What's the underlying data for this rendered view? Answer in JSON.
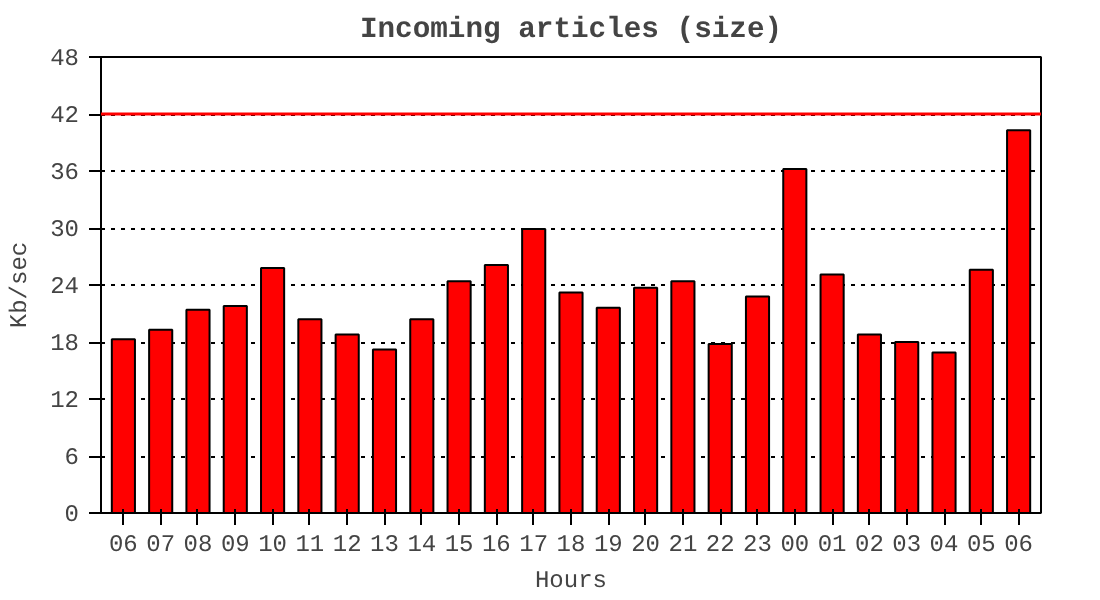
{
  "chart_data": {
    "type": "bar",
    "title": "Incoming articles (size)",
    "ylabel": "Kb/sec",
    "xlabel": "Hours",
    "categories": [
      "06",
      "07",
      "08",
      "09",
      "10",
      "11",
      "12",
      "13",
      "14",
      "15",
      "16",
      "17",
      "18",
      "19",
      "20",
      "21",
      "22",
      "23",
      "00",
      "01",
      "02",
      "03",
      "04",
      "05",
      "06"
    ],
    "series": [
      {
        "color": "#ff0000",
        "values": [
          18.3,
          19.3,
          21.4,
          21.8,
          25.8,
          20.4,
          18.8,
          17.2,
          20.4,
          24.4,
          26.1,
          29.9,
          23.2,
          21.6,
          23.7,
          24.4,
          17.8,
          22.8,
          36.2,
          25.1,
          18.8,
          18.0,
          16.9,
          25.6,
          40.3
        ]
      }
    ],
    "ylim": [
      0,
      48
    ],
    "yticks": [
      0,
      6,
      12,
      18,
      24,
      30,
      36,
      42,
      48
    ],
    "grid": "y",
    "ref_lines": [
      {
        "axis": "y",
        "value": 42,
        "color": "#ff0000"
      }
    ]
  }
}
